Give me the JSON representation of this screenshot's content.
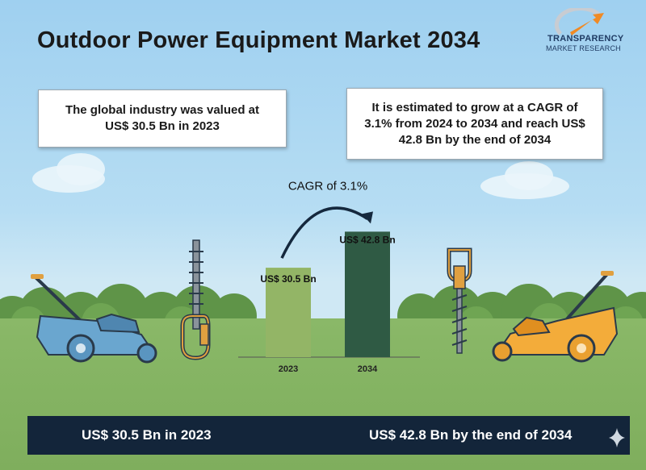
{
  "title": "Outdoor Power Equipment Market 2034",
  "logo": {
    "line1": "TRANSPARENCY",
    "line2": "MARKET RESEARCH",
    "accent": "#f08a24",
    "brand": "#1f3b63"
  },
  "info_left": "The global industry was valued at US$ 30.5 Bn in 2023",
  "info_right": "It is estimated to grow at a CAGR of 3.1% from 2024 to 2034 and reach US$ 42.8 Bn by the end of 2034",
  "bottom": {
    "left": "US$ 30.5 Bn in 2023",
    "right": "US$ 42.8 Bn by the end of 2034"
  },
  "colors": {
    "bar_2023": "#93b566",
    "bar_2034": "#2f5a44",
    "bottom_bar": "#13253a",
    "mower_left": "#6aa6cf",
    "mower_right": "#f3ac3a"
  },
  "chart_data": {
    "type": "bar",
    "categories": [
      "2023",
      "2034"
    ],
    "values": [
      30.5,
      42.8
    ],
    "value_labels": [
      "US$ 30.5 Bn",
      "US$ 42.8 Bn"
    ],
    "annotation": "CAGR of 3.1%",
    "ylim": [
      0,
      55
    ],
    "grid": false
  }
}
